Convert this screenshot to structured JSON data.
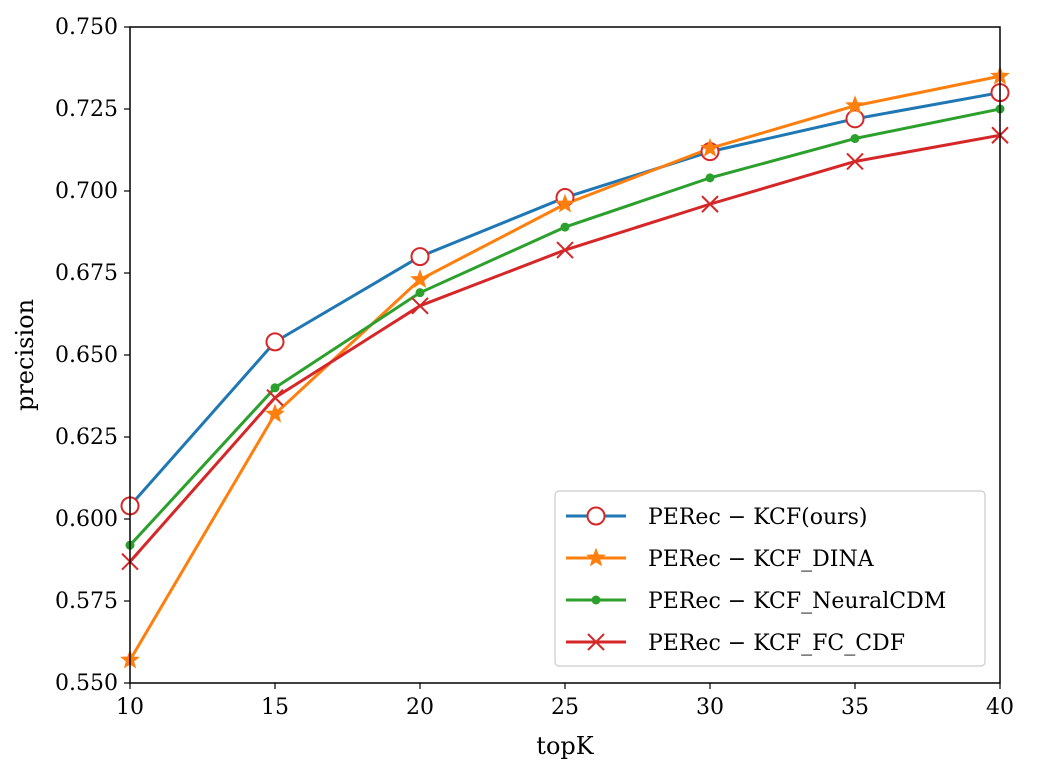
{
  "chart_data": {
    "type": "line",
    "title": "",
    "xlabel": "topK",
    "ylabel": "precision",
    "x": [
      10,
      15,
      20,
      25,
      30,
      35,
      40
    ],
    "xlim": [
      10,
      40
    ],
    "ylim": [
      0.55,
      0.75
    ],
    "x_ticks": [
      "10",
      "15",
      "20",
      "25",
      "30",
      "35",
      "40"
    ],
    "y_ticks": [
      "0.550",
      "0.575",
      "0.600",
      "0.625",
      "0.650",
      "0.675",
      "0.700",
      "0.725",
      "0.750"
    ],
    "grid": false,
    "legend_position": "lower-right",
    "series": [
      {
        "name": "PERec − KCF(ours)",
        "color": "#1f77b4",
        "marker": "open-circle",
        "marker_color": "#d62728",
        "values": [
          0.604,
          0.654,
          0.68,
          0.698,
          0.712,
          0.722,
          0.73
        ]
      },
      {
        "name": "PERec − KCF_DINA",
        "color": "#ff7f0e",
        "marker": "star",
        "marker_color": "#ff7f0e",
        "values": [
          0.557,
          0.632,
          0.673,
          0.696,
          0.713,
          0.726,
          0.735
        ]
      },
      {
        "name": "PERec − KCF_NeuralCDM",
        "color": "#2ca02c",
        "marker": "dot",
        "marker_color": "#2ca02c",
        "values": [
          0.592,
          0.64,
          0.669,
          0.689,
          0.704,
          0.716,
          0.725
        ]
      },
      {
        "name": "PERec − KCF_FC_CDF",
        "color": "#d62728",
        "marker": "x",
        "marker_color": "#d62728",
        "values": [
          0.587,
          0.637,
          0.665,
          0.682,
          0.696,
          0.709,
          0.717
        ]
      }
    ]
  }
}
